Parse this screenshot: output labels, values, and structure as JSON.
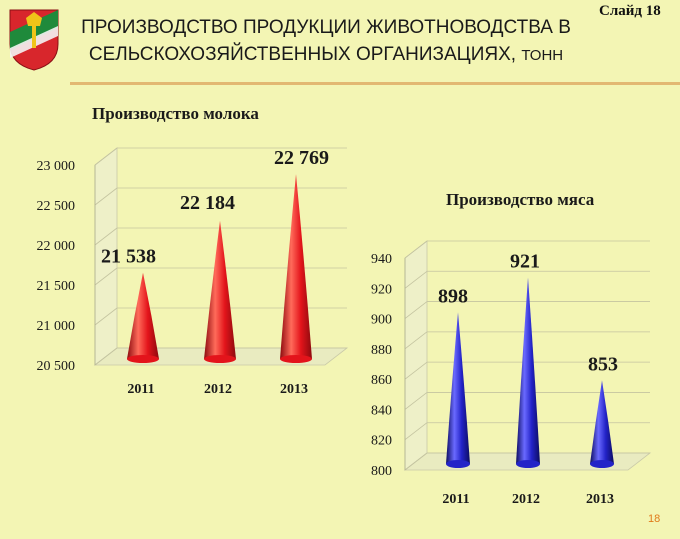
{
  "header": {
    "title_line1": "ПРОИЗВОДСТВО ПРОДУКЦИИ ЖИВОТНОВОДСТВА В",
    "title_line2": "СЕЛЬСКОХОЗЯЙСТВЕННЫХ ОРГАНИЗАЦИЯХ,",
    "title_unit": "ТОНН",
    "slide_label": "Слайд 18"
  },
  "page_number": "18",
  "colors": {
    "background": "#f3f5b4",
    "milk": "#e3141b",
    "meat": "#2323c8",
    "rule": "#e2b872"
  },
  "chart_data": [
    {
      "type": "bar",
      "title": "Производство молока",
      "categories": [
        "2011",
        "2012",
        "2013"
      ],
      "values": [
        21538,
        22184,
        22769
      ],
      "value_labels": [
        "21 538",
        "22 184",
        "22 769"
      ],
      "ylim": [
        20500,
        23000
      ],
      "yticks": [
        20500,
        21000,
        21500,
        22000,
        22500,
        23000
      ],
      "ytick_labels": [
        "20 500",
        "21 000",
        "21 500",
        "22 000",
        "22 500",
        "23 000"
      ],
      "grid": true,
      "color": "#e3141b"
    },
    {
      "type": "bar",
      "title": "Производство мяса",
      "categories": [
        "2011",
        "2012",
        "2013"
      ],
      "values": [
        898,
        921,
        853
      ],
      "value_labels": [
        "898",
        "921",
        "853"
      ],
      "ylim": [
        800,
        940
      ],
      "yticks": [
        800,
        820,
        840,
        860,
        880,
        900,
        920,
        940
      ],
      "ytick_labels": [
        "800",
        "820",
        "840",
        "860",
        "880",
        "900",
        "920",
        "940"
      ],
      "grid": true,
      "color": "#2323c8"
    }
  ]
}
